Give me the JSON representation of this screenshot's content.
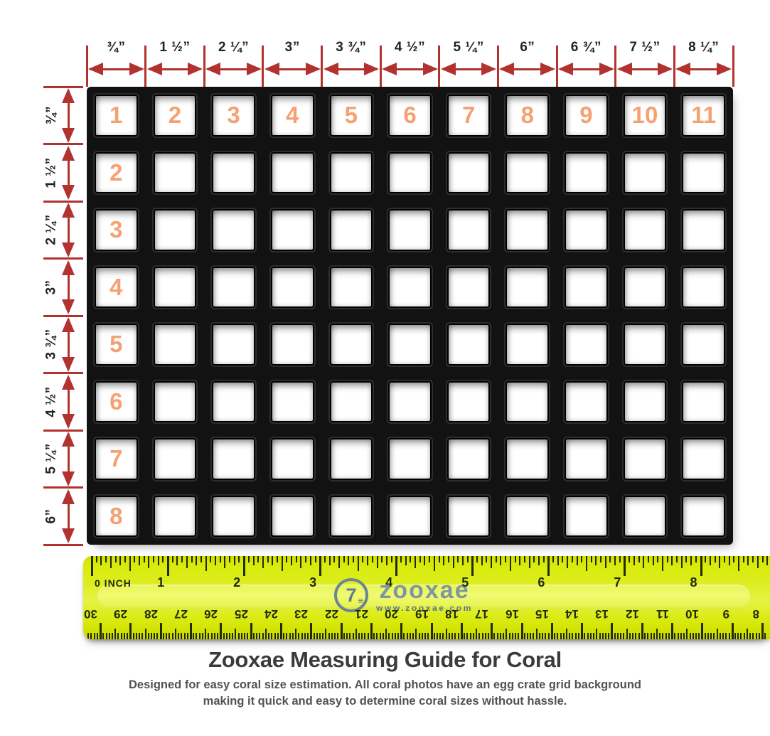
{
  "colors": {
    "axis_red": "#b23230",
    "grid_black": "#121212",
    "cell_white": "#ffffff",
    "number_orange": "#f5a173",
    "ruler_yellow": "#dcec18",
    "ruler_ink": "#222b07",
    "logo_blue": "#7e96a4",
    "title_gray": "#3b3b3d"
  },
  "top_axis": {
    "labels": [
      "¾”",
      "1 ½”",
      "2 ¼”",
      "3”",
      "3 ¾”",
      "4 ½”",
      "5 ¼”",
      "6”",
      "6 ¾”",
      "7 ½”",
      "8 ¼”"
    ]
  },
  "left_axis": {
    "labels": [
      "¾”",
      "1 ½”",
      "2 ¼”",
      "3”",
      "3 ¾”",
      "4 ½”",
      "5 ¼”",
      "6”"
    ]
  },
  "grid": {
    "columns": 11,
    "rows": 8,
    "top_row_numbers": [
      "1",
      "2",
      "3",
      "4",
      "5",
      "6",
      "7",
      "8",
      "9",
      "10",
      "11"
    ],
    "left_column_numbers": [
      "2",
      "3",
      "4",
      "5",
      "6",
      "7",
      "8"
    ]
  },
  "ruler": {
    "zero_label": "0 INCH",
    "inch_labels": [
      "1",
      "2",
      "3",
      "4",
      "5",
      "6",
      "7",
      "8"
    ],
    "cm_labels": [
      "30",
      "29",
      "28",
      "27",
      "26",
      "25",
      "24",
      "23",
      "22",
      "21",
      "20",
      "19",
      "18",
      "17",
      "16",
      "15",
      "14",
      "13",
      "12",
      "11",
      "10",
      "9",
      "8"
    ]
  },
  "logo": {
    "icon": "circle-seven-icon",
    "symbol": "7",
    "name": "zooxae",
    "url": "www.zooxae.com"
  },
  "footer": {
    "title": "Zooxae Measuring Guide for Coral",
    "subtitle_lines": [
      "Designed for easy coral size estimation. All coral photos have an egg crate grid background",
      "making it quick and easy to determine coral sizes without hassle."
    ]
  }
}
